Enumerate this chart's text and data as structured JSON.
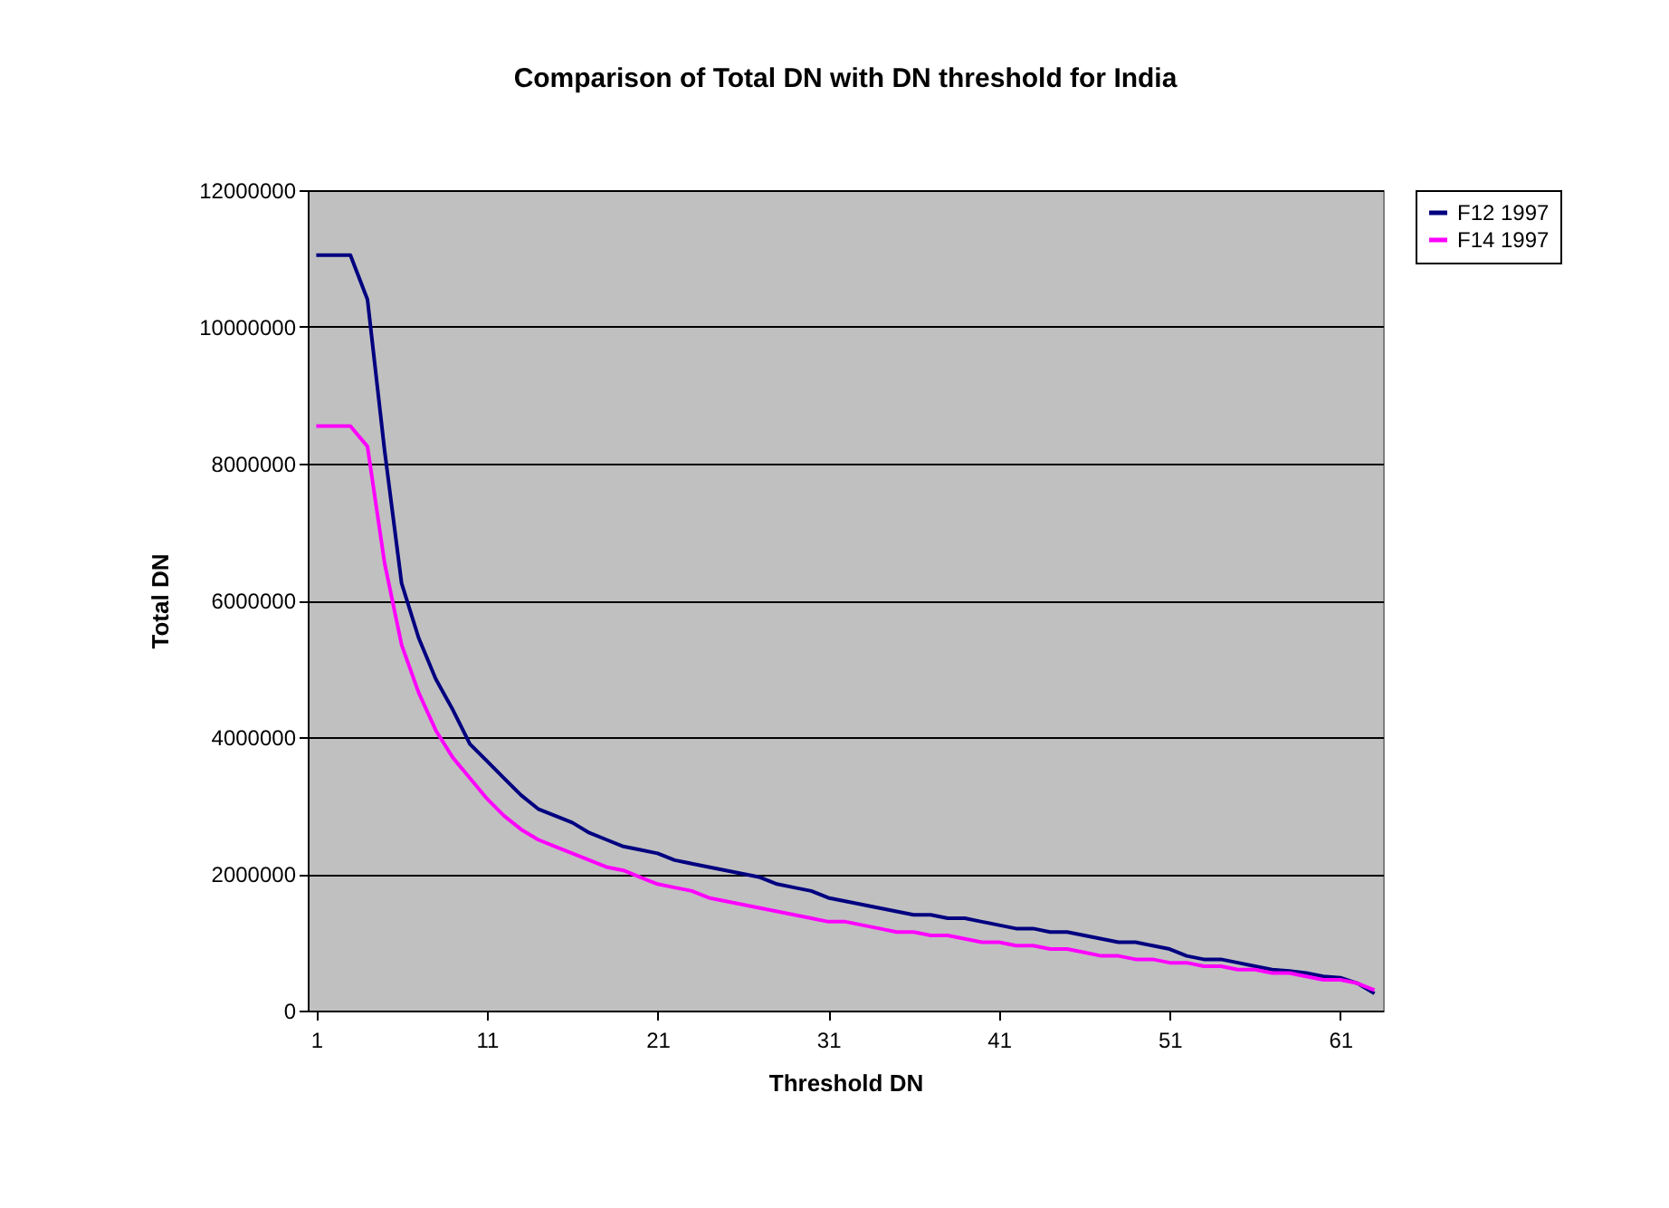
{
  "chart_data": {
    "type": "line",
    "title": "Comparison of Total DN with DN threshold for India",
    "xlabel": "Threshold DN",
    "ylabel": "Total DN",
    "x": [
      1,
      2,
      3,
      4,
      5,
      6,
      7,
      8,
      9,
      10,
      11,
      12,
      13,
      14,
      15,
      16,
      17,
      18,
      19,
      20,
      21,
      22,
      23,
      24,
      25,
      26,
      27,
      28,
      29,
      30,
      31,
      32,
      33,
      34,
      35,
      36,
      37,
      38,
      39,
      40,
      41,
      42,
      43,
      44,
      45,
      46,
      47,
      48,
      49,
      50,
      51,
      52,
      53,
      54,
      55,
      56,
      57,
      58,
      59,
      60,
      61,
      62,
      63
    ],
    "series": [
      {
        "name": "F12 1997",
        "color": "#000080",
        "values": [
          11050000,
          11050000,
          11050000,
          10400000,
          8200000,
          6250000,
          5450000,
          4850000,
          4400000,
          3900000,
          3650000,
          3400000,
          3150000,
          2950000,
          2850000,
          2750000,
          2600000,
          2500000,
          2400000,
          2350000,
          2300000,
          2200000,
          2150000,
          2100000,
          2050000,
          2000000,
          1950000,
          1850000,
          1800000,
          1750000,
          1650000,
          1600000,
          1550000,
          1500000,
          1450000,
          1400000,
          1400000,
          1350000,
          1350000,
          1300000,
          1250000,
          1200000,
          1200000,
          1150000,
          1150000,
          1100000,
          1050000,
          1000000,
          1000000,
          950000,
          900000,
          800000,
          750000,
          750000,
          700000,
          650000,
          600000,
          580000,
          550000,
          500000,
          480000,
          400000,
          250000
        ]
      },
      {
        "name": "F14 1997",
        "color": "#ff00ff",
        "values": [
          8550000,
          8550000,
          8550000,
          8250000,
          6550000,
          5350000,
          4650000,
          4100000,
          3700000,
          3400000,
          3100000,
          2850000,
          2650000,
          2500000,
          2400000,
          2300000,
          2200000,
          2100000,
          2050000,
          1950000,
          1850000,
          1800000,
          1750000,
          1650000,
          1600000,
          1550000,
          1500000,
          1450000,
          1400000,
          1350000,
          1300000,
          1300000,
          1250000,
          1200000,
          1150000,
          1150000,
          1100000,
          1100000,
          1050000,
          1000000,
          1000000,
          950000,
          950000,
          900000,
          900000,
          850000,
          800000,
          800000,
          750000,
          750000,
          700000,
          700000,
          650000,
          650000,
          600000,
          600000,
          550000,
          550000,
          500000,
          450000,
          450000,
          400000,
          300000
        ]
      }
    ],
    "xlim": [
      0.5,
      63.5
    ],
    "xticks": [
      1,
      11,
      21,
      31,
      41,
      51,
      61
    ],
    "ylim": [
      0,
      12000000
    ],
    "yticks": [
      0,
      2000000,
      4000000,
      6000000,
      8000000,
      10000000,
      12000000
    ],
    "grid": "y",
    "legend": "right",
    "line_style": "solid",
    "marker": "none"
  }
}
